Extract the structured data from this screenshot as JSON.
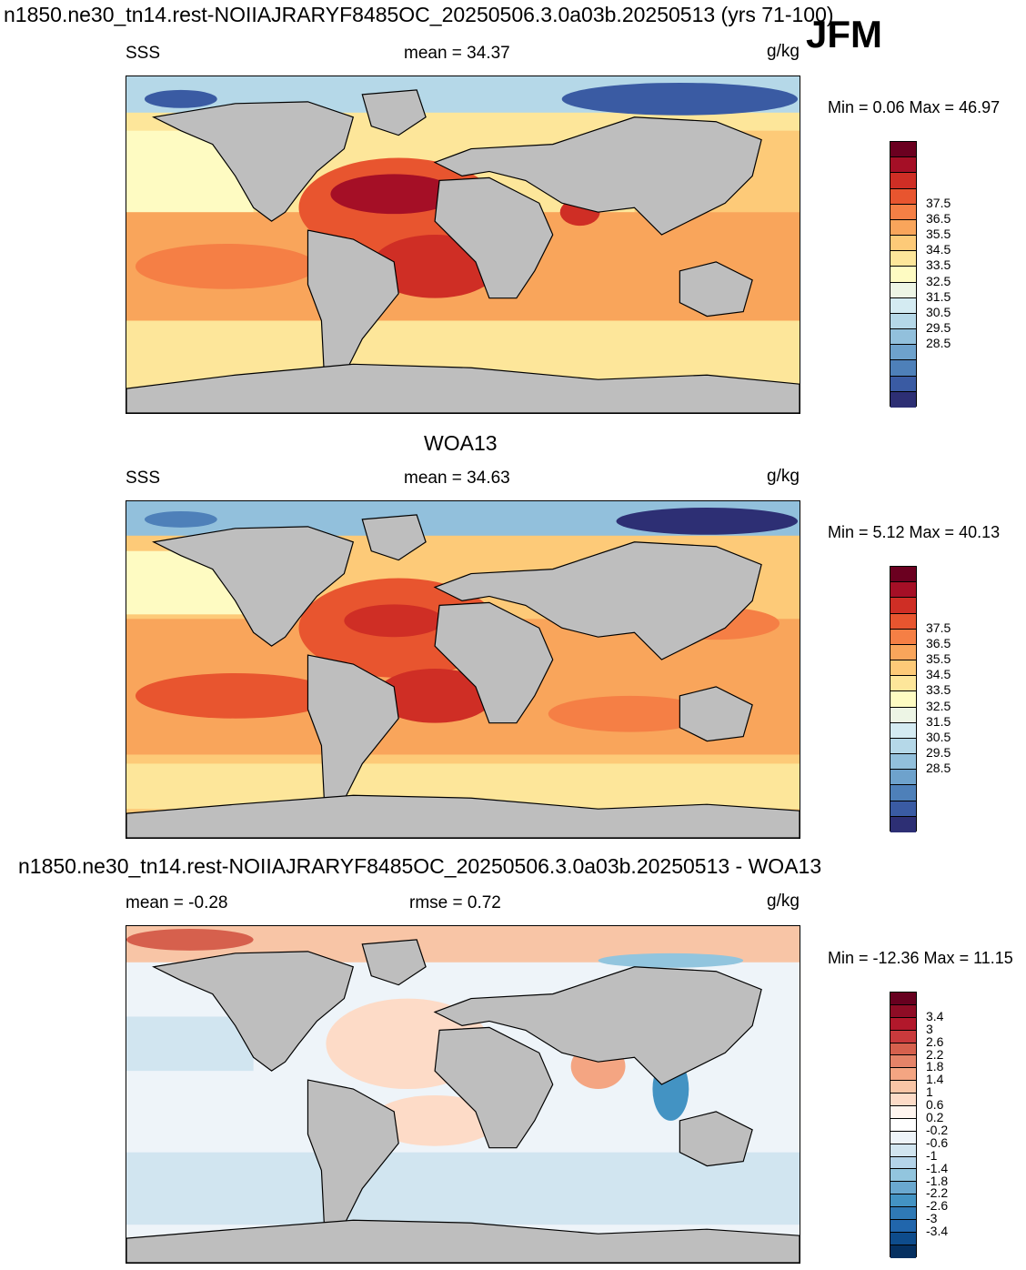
{
  "header": {
    "title": "n1850.ne30_tn14.rest-NOIIAJRARYF8485OC_20250506.3.0a03b.20250513 (yrs 71-100)",
    "season": "JFM"
  },
  "panels": [
    {
      "id": "model",
      "title": "",
      "left_label": "SSS",
      "mean_label": "mean =  34.37",
      "rmse_label": "",
      "units": "g/kg",
      "minmax_label": "Min =   0.06 Max =  46.97",
      "colorbar": {
        "ticks": [
          "37.5",
          "36.5",
          "35.5",
          "34.5",
          "33.5",
          "32.5",
          "31.5",
          "30.5",
          "29.5",
          "28.5"
        ],
        "colors": [
          "#6b0020",
          "#a50f26",
          "#cf2e25",
          "#e8552f",
          "#f57f45",
          "#f9a55b",
          "#fdca78",
          "#fde69a",
          "#fefbc2",
          "#edf5e5",
          "#d4ebf2",
          "#b5d8e8",
          "#92c0dc",
          "#6ea2cc",
          "#4e80b9",
          "#3a5ba3",
          "#2d2f74"
        ]
      }
    },
    {
      "id": "obs",
      "title": "WOA13",
      "left_label": "SSS",
      "mean_label": "mean =  34.63",
      "rmse_label": "",
      "units": "g/kg",
      "minmax_label": "Min =   5.12 Max =  40.13",
      "colorbar": {
        "ticks": [
          "37.5",
          "36.5",
          "35.5",
          "34.5",
          "33.5",
          "32.5",
          "31.5",
          "30.5",
          "29.5",
          "28.5"
        ],
        "colors": [
          "#6b0020",
          "#a50f26",
          "#cf2e25",
          "#e8552f",
          "#f57f45",
          "#f9a55b",
          "#fdca78",
          "#fde69a",
          "#fefbc2",
          "#edf5e5",
          "#d4ebf2",
          "#b5d8e8",
          "#92c0dc",
          "#6ea2cc",
          "#4e80b9",
          "#3a5ba3",
          "#2d2f74"
        ]
      }
    },
    {
      "id": "diff",
      "title": "n1850.ne30_tn14.rest-NOIIAJRARYF8485OC_20250506.3.0a03b.20250513 - WOA13",
      "left_label": "",
      "mean_label": "mean =  -0.28",
      "rmse_label": "rmse =   0.72",
      "units": "g/kg",
      "minmax_label": "Min = -12.36 Max =  11.15",
      "colorbar": {
        "ticks": [
          "3.4",
          "3",
          "2.6",
          "2.2",
          "1.8",
          "1.4",
          "1",
          "0.6",
          "0.2",
          "-0.2",
          "-0.6",
          "-1",
          "-1.4",
          "-1.8",
          "-2.2",
          "-2.6",
          "-3",
          "-3.4"
        ],
        "colors": [
          "#67001f",
          "#8e0c25",
          "#b2182b",
          "#c93a3c",
          "#d6604d",
          "#e58368",
          "#f4a582",
          "#f8c5a6",
          "#fddbc7",
          "#fff5ef",
          "#ffffff",
          "#eef4f9",
          "#d1e5f0",
          "#b4d4e9",
          "#92c5de",
          "#6aa8cf",
          "#4393c3",
          "#2f79b5",
          "#2166ac",
          "#0e4c8c",
          "#053061"
        ]
      }
    }
  ],
  "map_colors": {
    "land": "#bebebe",
    "coast": "#000000"
  }
}
